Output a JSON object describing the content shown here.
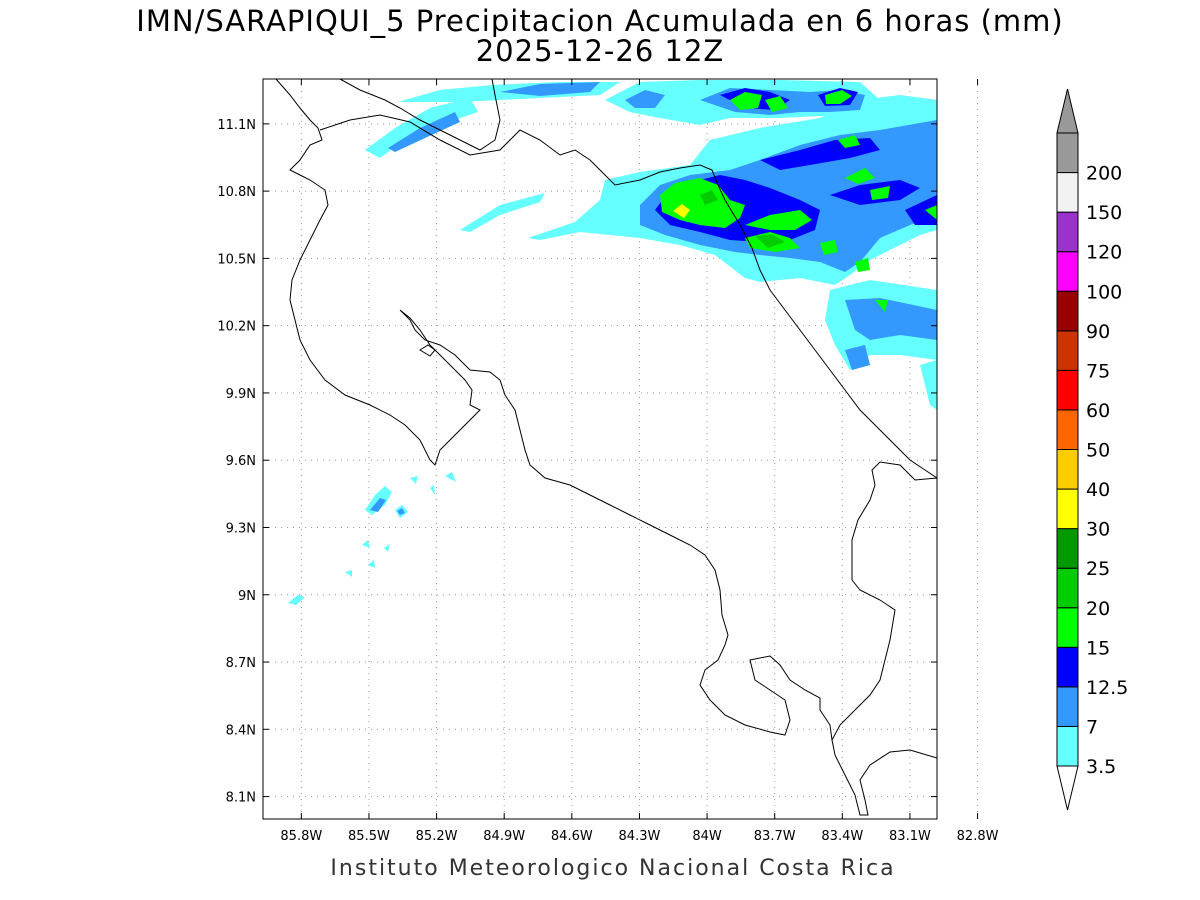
{
  "title": {
    "line1": "IMN/SARAPIQUI_5 Precipitacion Acumulada en 6 horas (mm)",
    "line2": "2025-12-26 12Z"
  },
  "credit": "Instituto Meteorologico Nacional Costa Rica",
  "map": {
    "lon_range": [
      -85.97,
      -82.98
    ],
    "lat_range": [
      8.0,
      11.3
    ],
    "lon_ticks": [
      {
        "value": -85.8,
        "label": "85.8W"
      },
      {
        "value": -85.5,
        "label": "85.5W"
      },
      {
        "value": -85.2,
        "label": "85.2W"
      },
      {
        "value": -84.9,
        "label": "84.9W"
      },
      {
        "value": -84.6,
        "label": "84.6W"
      },
      {
        "value": -84.3,
        "label": "84.3W"
      },
      {
        "value": -84.0,
        "label": "84W"
      },
      {
        "value": -83.7,
        "label": "83.7W"
      },
      {
        "value": -83.4,
        "label": "83.4W"
      },
      {
        "value": -83.1,
        "label": "83.1W"
      },
      {
        "value": -82.8,
        "label": "82.8W"
      }
    ],
    "lat_ticks": [
      {
        "value": 11.1,
        "label": "11.1N"
      },
      {
        "value": 10.8,
        "label": "10.8N"
      },
      {
        "value": 10.5,
        "label": "10.5N"
      },
      {
        "value": 10.2,
        "label": "10.2N"
      },
      {
        "value": 9.9,
        "label": "9.9N"
      },
      {
        "value": 9.6,
        "label": "9.6N"
      },
      {
        "value": 9.3,
        "label": "9.3N"
      },
      {
        "value": 9.0,
        "label": "9N"
      },
      {
        "value": 8.7,
        "label": "8.7N"
      },
      {
        "value": 8.4,
        "label": "8.4N"
      },
      {
        "value": 8.1,
        "label": "8.1N"
      }
    ],
    "grid": "dotted"
  },
  "colorbar": {
    "levels": [
      "3.5",
      "7",
      "12.5",
      "15",
      "20",
      "25",
      "30",
      "40",
      "50",
      "60",
      "75",
      "90",
      "100",
      "120",
      "150",
      "200"
    ],
    "colors": [
      "#66ffff",
      "#3399ff",
      "#0000ff",
      "#00ff00",
      "#00cc00",
      "#009900",
      "#ffff00",
      "#ffcc00",
      "#ff6600",
      "#ff0000",
      "#cc3300",
      "#990000",
      "#ff00ff",
      "#9933cc",
      "#f2f2f2",
      "#999999"
    ],
    "lower_arrow": "#ffffff",
    "upper_arrow": "#999999"
  }
}
